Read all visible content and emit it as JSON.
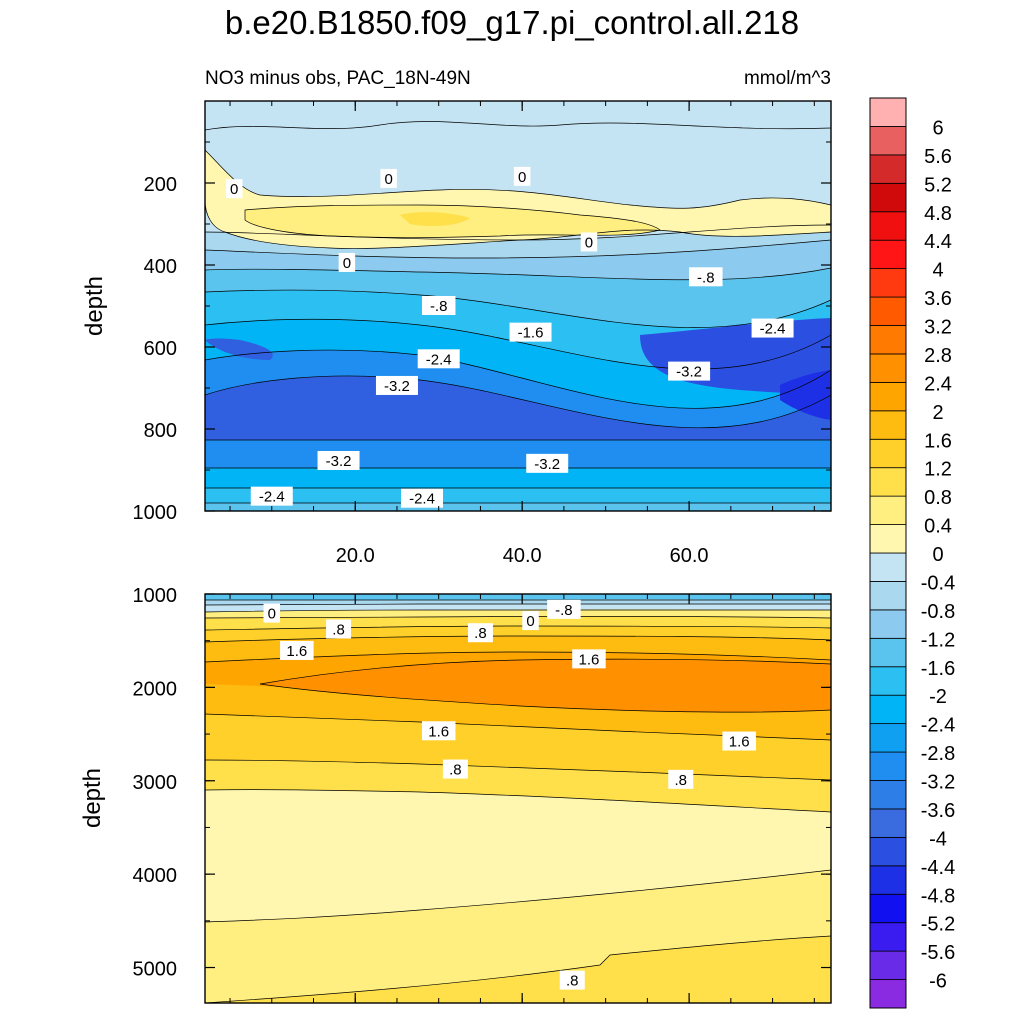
{
  "title": "b.e20.B1850.f09_g17.pi_control.all.218",
  "chart_data": {
    "type": "heatmap",
    "subtitle_left": "NO3 minus obs, PAC_18N-49N",
    "subtitle_right": "mmol/m^3",
    "x_ticks": [
      "20.0",
      "40.0",
      "60.0"
    ],
    "x_tick_values": [
      20,
      40,
      60
    ],
    "xlim": [
      2,
      77
    ],
    "panels": [
      {
        "name": "upper",
        "ylabel": "depth",
        "ylim": [
          0,
          1000
        ],
        "y_ticks": [
          "200",
          "400",
          "600",
          "800",
          "1000"
        ],
        "y_tick_values": [
          200,
          400,
          600,
          800,
          1000
        ],
        "contour_labels": [
          {
            "text": "0",
            "x": 5.5,
            "y": 215
          },
          {
            "text": "0",
            "x": 24,
            "y": 190
          },
          {
            "text": "0",
            "x": 40,
            "y": 185
          },
          {
            "text": "0",
            "x": 48,
            "y": 345
          },
          {
            "text": "0",
            "x": 19,
            "y": 395
          },
          {
            "text": "-.8",
            "x": 62,
            "y": 430
          },
          {
            "text": "-.8",
            "x": 30,
            "y": 500
          },
          {
            "text": "-1.6",
            "x": 41,
            "y": 565
          },
          {
            "text": "-2.4",
            "x": 70,
            "y": 555
          },
          {
            "text": "-2.4",
            "x": 30,
            "y": 630
          },
          {
            "text": "-3.2",
            "x": 25,
            "y": 695
          },
          {
            "text": "-3.2",
            "x": 60,
            "y": 660
          },
          {
            "text": "-3.2",
            "x": 18,
            "y": 878
          },
          {
            "text": "-3.2",
            "x": 43,
            "y": 885
          },
          {
            "text": "-2.4",
            "x": 10,
            "y": 965
          },
          {
            "text": "-2.4",
            "x": 28,
            "y": 970
          }
        ]
      },
      {
        "name": "lower",
        "ylabel": "depth",
        "ylim": [
          1000,
          5380
        ],
        "y_ticks": [
          "1000",
          "2000",
          "3000",
          "4000",
          "5000"
        ],
        "y_tick_values": [
          1000,
          2000,
          3000,
          4000,
          5000
        ],
        "contour_labels": [
          {
            "text": "0",
            "x": 10,
            "y": 1210
          },
          {
            "text": "-.8",
            "x": 45,
            "y": 1170
          },
          {
            "text": "0",
            "x": 41,
            "y": 1290
          },
          {
            "text": ".8",
            "x": 18,
            "y": 1380
          },
          {
            "text": ".8",
            "x": 35,
            "y": 1420
          },
          {
            "text": "1.6",
            "x": 13,
            "y": 1610
          },
          {
            "text": "1.6",
            "x": 48,
            "y": 1700
          },
          {
            "text": "1.6",
            "x": 30,
            "y": 2470
          },
          {
            "text": "1.6",
            "x": 66,
            "y": 2580
          },
          {
            "text": ".8",
            "x": 32,
            "y": 2880
          },
          {
            "text": ".8",
            "x": 59,
            "y": 2990
          },
          {
            "text": ".8",
            "x": 46,
            "y": 5140
          }
        ]
      }
    ],
    "colorbar": {
      "levels": [
        -6,
        -5.6,
        -5.2,
        -4.8,
        -4.4,
        -4,
        -3.6,
        -3.2,
        -2.8,
        -2.4,
        -2,
        -1.6,
        -1.2,
        -0.8,
        -0.4,
        0,
        0.4,
        0.8,
        1.2,
        1.6,
        2,
        2.4,
        2.8,
        3.2,
        3.6,
        4,
        4.4,
        4.8,
        5.2,
        5.6,
        6
      ],
      "labels": [
        "-6",
        "-5.6",
        "-5.2",
        "-4.8",
        "-4.4",
        "-4",
        "-3.6",
        "-3.2",
        "-2.8",
        "-2.4",
        "-2",
        "-1.6",
        "-1.2",
        "-0.8",
        "-0.4",
        "0",
        "0.4",
        "0.8",
        "1.2",
        "1.6",
        "2",
        "2.4",
        "2.8",
        "3.2",
        "3.6",
        "4",
        "4.4",
        "4.8",
        "5.2",
        "5.6",
        "6"
      ],
      "colors": [
        "#8a2be2",
        "#6a2be8",
        "#3a1bf0",
        "#1010f0",
        "#1e30e6",
        "#2b4fe0",
        "#3a6ce0",
        "#2e7ee8",
        "#1f8ef0",
        "#0fa0f2",
        "#00b4f5",
        "#2cc0f2",
        "#5ac4ee",
        "#8ccbef",
        "#aad8ef",
        "#c4e4f3",
        "#fff7b0",
        "#ffee80",
        "#ffe04a",
        "#ffd02a",
        "#ffbc10",
        "#ffa500",
        "#ff9000",
        "#ff7a00",
        "#ff5a00",
        "#ff3a10",
        "#ff1515",
        "#f01010",
        "#d00a0a",
        "#d42a2a",
        "#e86060",
        "#ffb0b0"
      ]
    }
  }
}
